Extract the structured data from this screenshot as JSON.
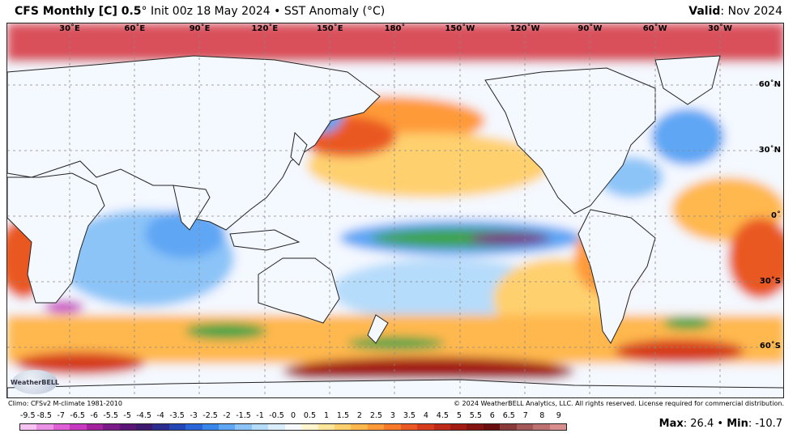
{
  "header": {
    "title": "CFS Monthly [C] 0.5",
    "degree": "°",
    "init": "Init 00z 18 May 2024",
    "bullet": "•",
    "product": "SST Anomaly (",
    "unit": "°C)",
    "valid_label": "Valid",
    "valid_value": "Nov 2024"
  },
  "map": {
    "longitude_labels": [
      "30˚E",
      "60˚E",
      "90˚E",
      "120˚E",
      "150˚E",
      "180˚",
      "150˚W",
      "120˚W",
      "90˚W",
      "60˚W",
      "30˚W"
    ],
    "latitude_labels": [
      "60˚N",
      "30˚N",
      "0˚",
      "30˚S",
      "60˚S"
    ],
    "logo_text": "WeatherBELL"
  },
  "footer": {
    "climo": "Climo: CFSv2 M-climate 1981-2010",
    "copyright": "© 2024 WeatherBELL Analytics, LLC. All rights reserved. License required for commercial distribution.",
    "max_label": "Max",
    "max_value": "26.4",
    "min_label": "Min",
    "min_value": "-10.7",
    "separator": "•"
  },
  "legend": {
    "ticks": [
      "-9.5",
      "-8.5",
      "-7",
      "-6.5",
      "-6",
      "-5.5",
      "-5",
      "-4.5",
      "-4",
      "-3.5",
      "-3",
      "-2.5",
      "-2",
      "-1.5",
      "-1",
      "-0.5",
      "0",
      "0.5",
      "1",
      "1.5",
      "2",
      "2.5",
      "3",
      "3.5",
      "4",
      "4.5",
      "5",
      "5.5",
      "6",
      "6.5",
      "7",
      "8",
      "9"
    ],
    "colors": [
      "#f7c3f3",
      "#ec92e6",
      "#de5fd6",
      "#c839c2",
      "#a3239f",
      "#7d1a8a",
      "#5a1577",
      "#3d1a6e",
      "#2b2d8f",
      "#2447b5",
      "#2a66d8",
      "#3a87ec",
      "#5fa6f4",
      "#8cc4f8",
      "#b6dcfb",
      "#dbeefd",
      "#f6faff",
      "#fff6cf",
      "#ffe69a",
      "#ffd06e",
      "#ffb84d",
      "#ff9a38",
      "#f77a2a",
      "#ea5823",
      "#d63c1e",
      "#bd2a18",
      "#a21c15",
      "#841411",
      "#6a0f0e",
      "#8b3a3a",
      "#a55858",
      "#bf7272",
      "#d98e8e"
    ]
  }
}
